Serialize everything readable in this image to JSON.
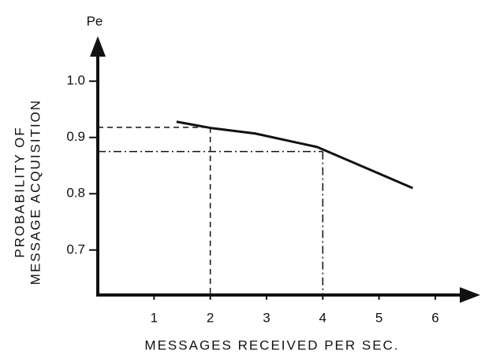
{
  "chart_data": {
    "type": "line",
    "x_axis_label": "MESSAGES RECEIVED PER SEC.",
    "y_axis_label": [
      "PROBABILITY OF",
      "MESSAGE ACQUISITION"
    ],
    "y_axis_symbol": "Pe",
    "x": [
      1.4,
      2,
      2.8,
      3.9,
      5.6
    ],
    "series": [
      {
        "color": "#111111",
        "values": [
          0.928,
          0.917,
          0.907,
          0.883,
          0.81
        ]
      }
    ],
    "xlim": [
      0,
      6.8
    ],
    "xticks": [
      1,
      2,
      3,
      4,
      5,
      6
    ],
    "ylim": [
      0.62,
      1.08
    ],
    "yticks": [
      {
        "value": 1,
        "label": "1.0"
      },
      0.9,
      0.8,
      0.7
    ],
    "reference_lines": [
      {
        "x": 2,
        "y": 0.918,
        "style": "dashed"
      },
      {
        "x": 4,
        "y": 0.875,
        "style": "dashdot"
      }
    ]
  }
}
